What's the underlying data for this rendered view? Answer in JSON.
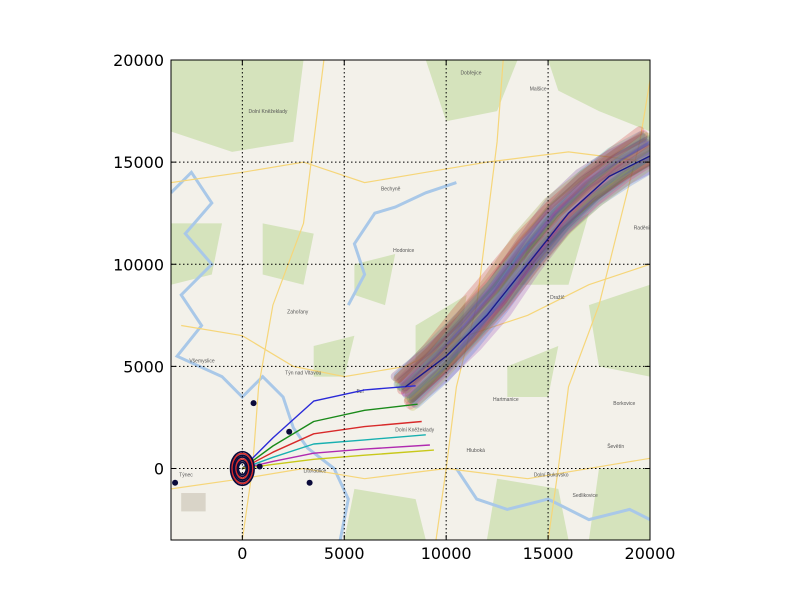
{
  "chart_data": {
    "type": "line",
    "title": "",
    "xlabel": "",
    "ylabel": "",
    "xlim": [
      -3500,
      20000
    ],
    "ylim": [
      -3500,
      20000
    ],
    "grid": true,
    "background": "map",
    "x_ticks": [
      0,
      5000,
      10000,
      15000,
      20000
    ],
    "y_ticks": [
      0,
      5000,
      10000,
      15000,
      20000
    ],
    "x_tick_labels": [
      "0",
      "5000",
      "10000",
      "15000",
      "20000"
    ],
    "y_tick_labels": [
      "0",
      "5000",
      "10000",
      "15000",
      "20000"
    ],
    "colors": {
      "water": "#a9c8e8",
      "forest": "#cfe0b4",
      "land": "#f3f1ea",
      "road": "#f6d67a",
      "markers": "#0a0a3a"
    },
    "series": [
      {
        "color": "#2a2ad8",
        "x": [
          0,
          1500,
          3500,
          6000,
          8500
        ],
        "y": [
          0,
          1500,
          3300,
          3850,
          4050
        ]
      },
      {
        "color": "#1a8a1a",
        "x": [
          0,
          1500,
          3500,
          6000,
          8600
        ],
        "y": [
          0,
          1100,
          2300,
          2850,
          3150
        ]
      },
      {
        "color": "#d82a2a",
        "x": [
          0,
          1500,
          3500,
          6000,
          8800
        ],
        "y": [
          0,
          800,
          1700,
          2050,
          2300
        ]
      },
      {
        "color": "#18b0b0",
        "x": [
          0,
          1500,
          3500,
          6000,
          9000
        ],
        "y": [
          0,
          550,
          1200,
          1400,
          1650
        ]
      },
      {
        "color": "#b02ab0",
        "x": [
          0,
          1500,
          3500,
          6000,
          9200
        ],
        "y": [
          0,
          350,
          750,
          950,
          1150
        ]
      },
      {
        "color": "#c8c81a",
        "x": [
          0,
          1500,
          3500,
          6000,
          9400
        ],
        "y": [
          0,
          200,
          450,
          650,
          900
        ]
      },
      {
        "color": "#1a1a8a",
        "x": [
          8000,
          10000,
          12000,
          14000,
          16000,
          18000,
          20000
        ],
        "y": [
          4000,
          5500,
          7500,
          10000,
          12500,
          14300,
          15300
        ]
      }
    ],
    "band_center": {
      "x": [
        8000,
        9500,
        11000,
        12500,
        14000,
        15500,
        17000,
        18500,
        20000
      ],
      "y": [
        3800,
        5200,
        6800,
        8500,
        10500,
        12300,
        13700,
        14800,
        15700
      ]
    },
    "markers": [
      {
        "x": 550,
        "y": 3200
      },
      {
        "x": 2300,
        "y": 1800
      },
      {
        "x": 850,
        "y": 100
      },
      {
        "x": 3300,
        "y": -700
      },
      {
        "x": -3300,
        "y": -700
      }
    ],
    "start_rings": {
      "x": 0,
      "y": 0
    }
  },
  "map_labels": [
    {
      "text": "Dolní Kněžeklady",
      "x": 300,
      "y": 17400
    },
    {
      "text": "Dobřejice",
      "x": 10700,
      "y": 19300
    },
    {
      "text": "Malšice",
      "x": 14100,
      "y": 18500
    },
    {
      "text": "Bechyně",
      "x": 6800,
      "y": 13600
    },
    {
      "text": "Hodonice",
      "x": 7400,
      "y": 10600
    },
    {
      "text": "Zahořany",
      "x": 2200,
      "y": 7600
    },
    {
      "text": "Všemyslice",
      "x": -2600,
      "y": 5200
    },
    {
      "text": "Týn nad Vltavou",
      "x": 2100,
      "y": 4600
    },
    {
      "text": "Bzí",
      "x": 5600,
      "y": 3700
    },
    {
      "text": "Dolní Kněžeklady",
      "x": 7500,
      "y": 1800
    },
    {
      "text": "Hluboká",
      "x": 11000,
      "y": 800
    },
    {
      "text": "Hartmanice",
      "x": 12300,
      "y": 3300
    },
    {
      "text": "Dražíč",
      "x": 15100,
      "y": 8300
    },
    {
      "text": "Dolní Bukovsko",
      "x": 14300,
      "y": -400
    },
    {
      "text": "Borkovice",
      "x": 18200,
      "y": 3100
    },
    {
      "text": "Sedlikovice",
      "x": 16200,
      "y": -1400
    },
    {
      "text": "Týnec",
      "x": -3100,
      "y": -400
    },
    {
      "text": "Litoradlice",
      "x": 3000,
      "y": -200
    },
    {
      "text": "Ševětín",
      "x": 17900,
      "y": 1000
    },
    {
      "text": "Raděnice",
      "x": 19200,
      "y": 11700
    }
  ]
}
